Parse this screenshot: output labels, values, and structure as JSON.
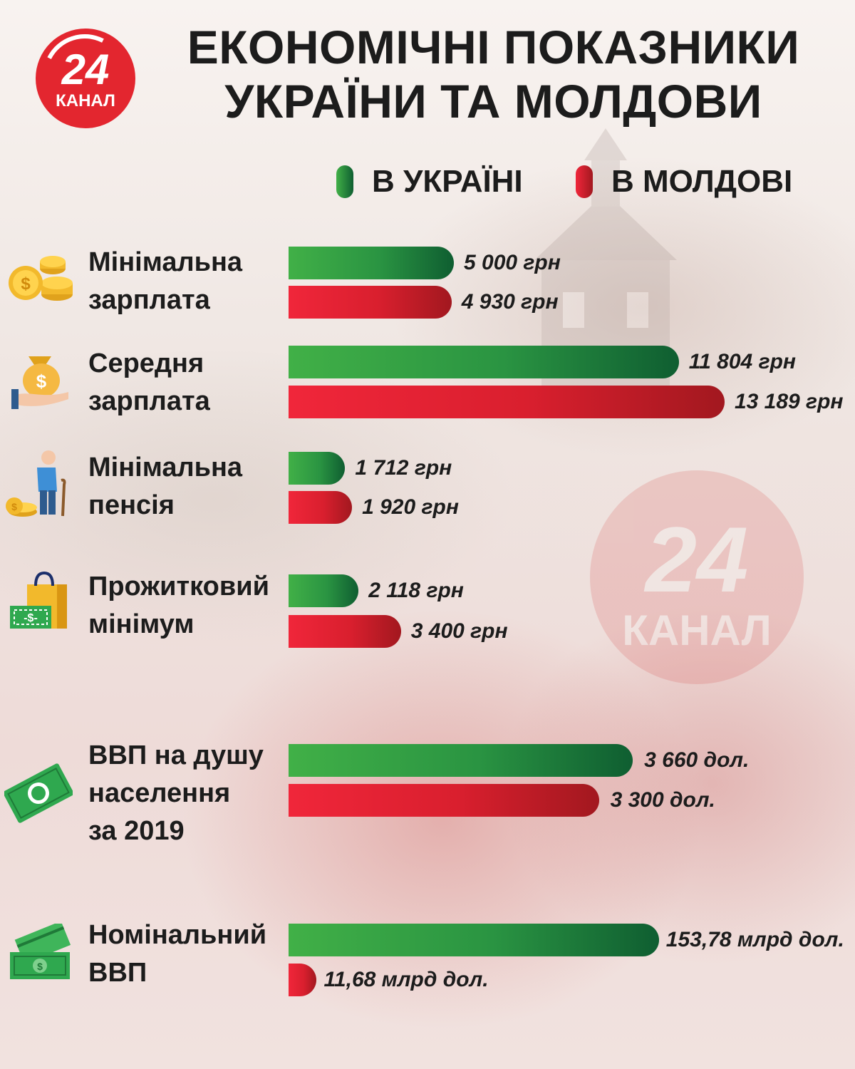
{
  "logo": {
    "number": "24",
    "name": "КАНАЛ"
  },
  "title": "ЕКОНОМІЧНІ ПОКАЗНИКИ\nУКРАЇНИ ТА МОЛДОВИ",
  "legend": {
    "ukraine": "В УКРАЇНІ",
    "moldova": "В МОЛДОВІ"
  },
  "colors": {
    "ukraine": "#2a9442",
    "moldova": "#d91f2e",
    "logo": "#e3262f"
  },
  "chart_data": {
    "type": "bar",
    "orientation": "horizontal",
    "title": "ЕКОНОМІЧНІ ПОКАЗНИКИ УКРАЇНИ ТА МОЛДОВИ",
    "legend_position": "top-right",
    "grid": false,
    "series_names": [
      "В УКРАЇНІ",
      "В МОЛДОВІ"
    ],
    "rows": [
      {
        "label": "Мінімальна\nзарплата",
        "icon": "coins-icon",
        "ua": 5000,
        "md": 4930,
        "ua_label": "5 000 грн",
        "md_label": "4 930 грн"
      },
      {
        "label": "Середня\nзарплата",
        "icon": "money-bag-hand-icon",
        "ua": 11804,
        "md": 13189,
        "ua_label": "11 804 грн",
        "md_label": "13 189 грн"
      },
      {
        "label": "Мінімальна\nпенсія",
        "icon": "pensioner-icon",
        "ua": 1712,
        "md": 1920,
        "ua_label": "1 712 грн",
        "md_label": "1 920 грн"
      },
      {
        "label": "Прожитковий\nмінімум",
        "icon": "shopping-bag-icon",
        "ua": 2118,
        "md": 3400,
        "ua_label": "2 118 грн",
        "md_label": "3 400 грн"
      },
      {
        "label": "ВВП на душу\nнаселення\nза 2019",
        "icon": "banknote-icon",
        "ua": 3660,
        "md": 3300,
        "ua_label": "3 660 дол.",
        "md_label": "3 300 дол."
      },
      {
        "label": "Номінальний\nВВП",
        "icon": "cash-stack-icon",
        "ua": 153.78,
        "md": 11.68,
        "ua_label": "153,78 млрд дол.",
        "md_label": "11,68 млрд дол."
      }
    ]
  }
}
